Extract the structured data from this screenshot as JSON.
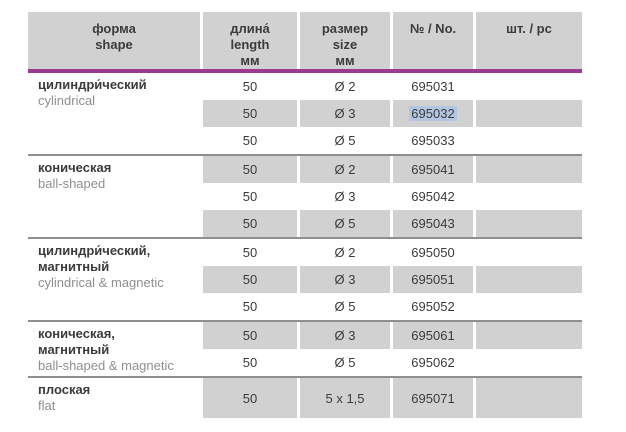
{
  "page": {
    "background": "#ffffff"
  },
  "table": {
    "colors": {
      "accent_line": "#9c3993",
      "cell_gray": "#d2d1d2",
      "group_separator": "#8f8f8f",
      "selection_highlight": "#b2c6e2",
      "dark_text": "#3b3b3b",
      "light_text": "#8f8f8f"
    },
    "headers": [
      {
        "key": "shape",
        "lines": [
          "форма",
          "shape"
        ]
      },
      {
        "key": "length",
        "lines": [
          "длина́",
          "length",
          "мм"
        ]
      },
      {
        "key": "size",
        "lines": [
          "размер",
          "size",
          "мм"
        ]
      },
      {
        "key": "no",
        "lines": [
          "№ / No."
        ]
      },
      {
        "key": "pcs",
        "lines": [
          "шт. / pc"
        ]
      }
    ],
    "groups": [
      {
        "shape_ru": "цилиндри́ческий",
        "shape_en": "cylindrical",
        "rows": [
          {
            "length": "50",
            "size": "Ø 2",
            "no": "695031",
            "qty": ""
          },
          {
            "length": "50",
            "size": "Ø 3",
            "no": "695032",
            "qty": "",
            "no_selected": true
          },
          {
            "length": "50",
            "size": "Ø 5",
            "no": "695033",
            "qty": ""
          }
        ]
      },
      {
        "shape_ru": "коническая",
        "shape_en": "ball-shaped",
        "rows": [
          {
            "length": "50",
            "size": "Ø 2",
            "no": "695041",
            "qty": ""
          },
          {
            "length": "50",
            "size": "Ø 3",
            "no": "695042",
            "qty": ""
          },
          {
            "length": "50",
            "size": "Ø 5",
            "no": "695043",
            "qty": ""
          }
        ]
      },
      {
        "shape_ru": "цилиндри́ческий,\nмагнитный",
        "shape_en": "cylindrical & magnetic",
        "rows": [
          {
            "length": "50",
            "size": "Ø 2",
            "no": "695050",
            "qty": ""
          },
          {
            "length": "50",
            "size": "Ø 3",
            "no": "695051",
            "qty": ""
          },
          {
            "length": "50",
            "size": "Ø 5",
            "no": "695052",
            "qty": ""
          }
        ]
      },
      {
        "shape_ru": "коническая,\nмагнитный",
        "shape_en": "ball-shaped & magnetic",
        "rows": [
          {
            "length": "50",
            "size": "Ø 3",
            "no": "695061",
            "qty": ""
          },
          {
            "length": "50",
            "size": "Ø 5",
            "no": "695062",
            "qty": ""
          }
        ]
      },
      {
        "shape_ru": "плоская",
        "shape_en": "flat",
        "tall": true,
        "rows": [
          {
            "length": "50",
            "size": "5 x 1,5",
            "no": "695071",
            "qty": ""
          }
        ]
      }
    ]
  }
}
